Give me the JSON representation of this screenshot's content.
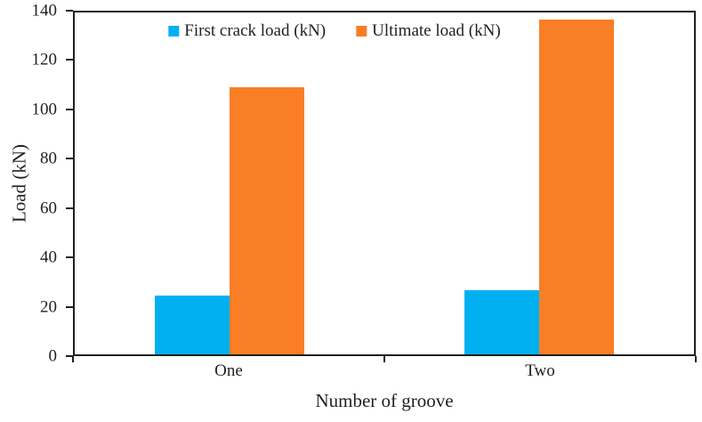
{
  "chart_data": {
    "type": "bar",
    "title": "",
    "xlabel": "Number of groove",
    "ylabel": "Load (kN)",
    "categories": [
      "One",
      "Two"
    ],
    "series": [
      {
        "name": "First crack load (kN)",
        "color": "#00B0F0",
        "values": [
          24,
          26.3
        ]
      },
      {
        "name": "Ultimate load (kN)",
        "color": "#F97E26",
        "values": [
          109.5,
          137
        ]
      }
    ],
    "ylim": [
      0,
      140
    ],
    "yticks": [
      0,
      20,
      40,
      60,
      80,
      100,
      120,
      140
    ],
    "grid": false,
    "legend_position": "top-inside",
    "axis_color": "#1f1f1f",
    "background_color": "#ffffff"
  }
}
